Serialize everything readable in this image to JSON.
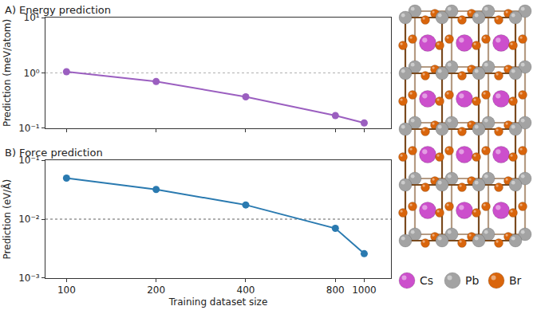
{
  "chart_data": [
    {
      "type": "line",
      "title": "A) Energy prediction",
      "ylabel": "Prediction (meV/atom)",
      "x": [
        100,
        200,
        400,
        800,
        1000
      ],
      "values": [
        1.05,
        0.7,
        0.37,
        0.17,
        0.125
      ],
      "color": "#9b5fc0",
      "marker": "circle",
      "log": true,
      "grid": "y",
      "tick_labels": "y",
      "xlim": [
        85,
        1230
      ],
      "xticks": [
        100,
        200,
        400,
        800,
        1000
      ],
      "ylim": [
        0.1,
        10
      ],
      "yticks": [
        {
          "value": 0.1,
          "label": "10⁻¹"
        },
        {
          "value": 1,
          "label": "10⁰"
        },
        {
          "value": 10,
          "label": "10¹"
        }
      ]
    },
    {
      "type": "line",
      "title": "B) Force prediction",
      "ylabel": "Prediction (eV/Å)",
      "xlabel": "Training dataset size",
      "x": [
        100,
        200,
        400,
        800,
        1000
      ],
      "values": [
        0.05,
        0.032,
        0.0175,
        0.007,
        0.0026
      ],
      "color": "#2a7ab0",
      "marker": "circle",
      "log": true,
      "grid": "y",
      "xlim": [
        85,
        1230
      ],
      "xticks": [
        100,
        200,
        400,
        800,
        1000
      ],
      "ylim": [
        0.001,
        0.1
      ],
      "yticks": [
        {
          "value": 0.001,
          "label": "10⁻³"
        },
        {
          "value": 0.01,
          "label": "10⁻²"
        },
        {
          "value": 0.1,
          "label": "10⁻¹"
        }
      ]
    }
  ],
  "structure": {
    "legend": [
      {
        "name": "Cs",
        "color": "#cc4fcc"
      },
      {
        "name": "Pb",
        "color": "#a3a3a3"
      },
      {
        "name": "Br",
        "color": "#d9650c"
      }
    ]
  }
}
